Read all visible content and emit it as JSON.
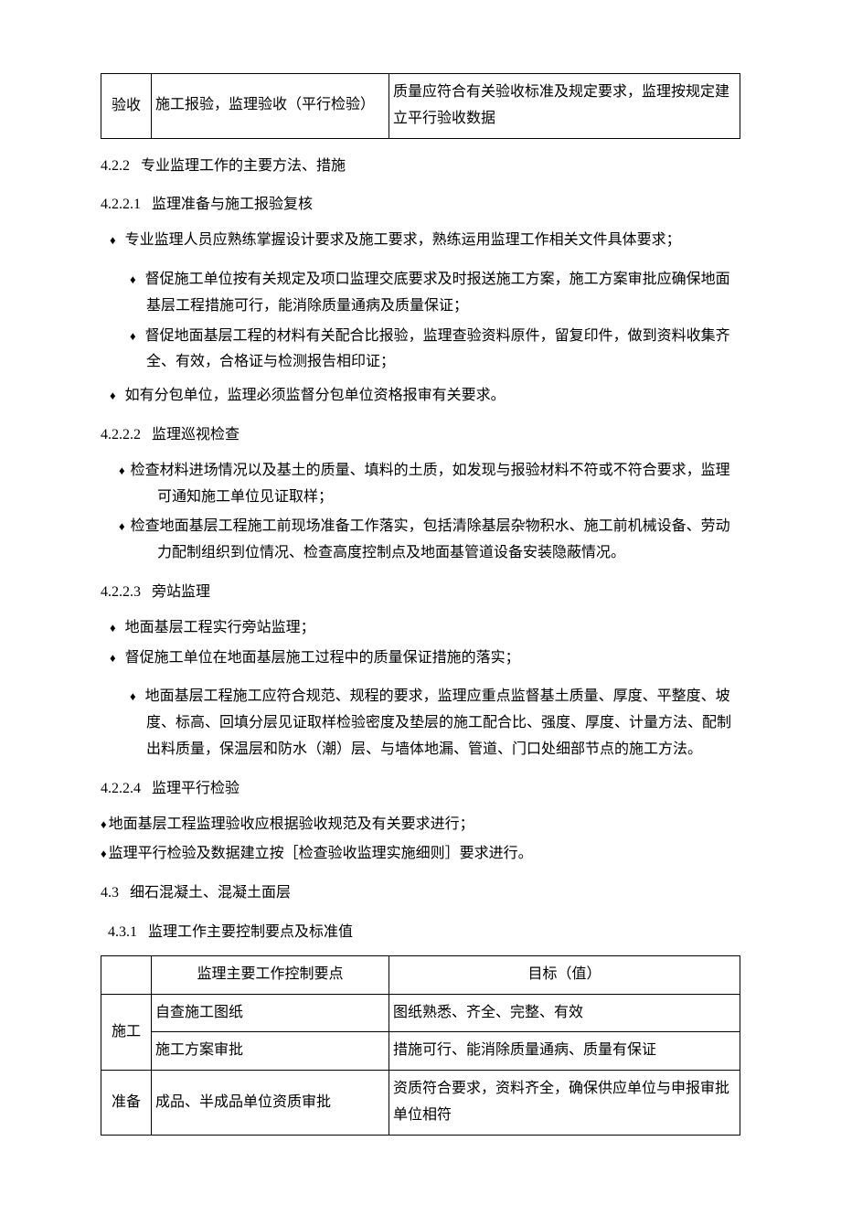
{
  "top_table": {
    "phase": "验收",
    "point": "施工报验，监理验收（平行检验）",
    "target": "质量应符合有关验收标准及规定要求，监理按规定建立平行验收数据"
  },
  "sec_4_2_2": {
    "num": "4.2.2",
    "title": "专业监理工作的主要方法、措施"
  },
  "sec_4_2_2_1": {
    "num": "4.2.2.1",
    "title": "监理准备与施工报验复核",
    "bullets": [
      "专业监理人员应熟练掌握设计要求及施工要求，熟练运用监理工作相关文件具体要求；"
    ],
    "sub": [
      "督促施工单位按有关规定及项口监理交底要求及时报送施工方案，施工方案审批应确保地面基层工程措施可行，能消除质量通病及质量保证；",
      "督促地面基层工程的材料有关配合比报验，监理查验资料原件，留复印件，做到资料收集齐全、有效，合格证与检测报告相印证；"
    ],
    "bullets2": [
      "如有分包单位，监理必须监督分包单位资格报审有关要求。"
    ]
  },
  "sec_4_2_2_2": {
    "num": "4.2.2.2",
    "title": "监理巡视检查",
    "items": [
      "检查材料进场情况以及基土的质量、填料的土质，如发现与报验材料不符或不符合要求，监理可通知施工单位见证取样；",
      "检查地面基层工程施工前现场准备工作落实，包括清除基层杂物积水、施工前机械设备、劳动力配制组织到位情况、检查高度控制点及地面基管道设备安装隐蔽情况。"
    ]
  },
  "sec_4_2_2_3": {
    "num": "4.2.2.3",
    "title": "旁站监理",
    "bullets": [
      "地面基层工程实行旁站监理；",
      "督促施工单位在地面基层施工过程中的质量保证措施的落实；"
    ],
    "sub": [
      "地面基层工程施工应符合规范、规程的要求，监理应重点监督基土质量、厚度、平整度、坡度、标高、回填分层见证取样检验密度及垫层的施工配合比、强度、厚度、计量方法、配制出料质量，保温层和防水（潮）层、与墙体地漏、管道、门口处细部节点的施工方法。"
    ]
  },
  "sec_4_2_2_4": {
    "num": "4.2.2.4",
    "title": "监理平行检验",
    "items": [
      "地面基层工程监理验收应根据验收规范及有关要求进行；",
      "监理平行检验及数据建立按［检查验收监理实施细则］要求进行。"
    ]
  },
  "sec_4_3": {
    "num": "4.3",
    "title": "细石混凝土、混凝土面层"
  },
  "sec_4_3_1": {
    "num": "4.3.1",
    "title": "监理工作主要控制要点及标准值",
    "table": {
      "headers": {
        "point": "监理主要工作控制要点",
        "target": "目标（值）"
      },
      "rows": [
        {
          "phase_label": "施工",
          "point": "自查施工图纸",
          "target": "图纸熟悉、齐全、完整、有效"
        },
        {
          "point": "施工方案审批",
          "target": "措施可行、能消除质量通病、质量有保证"
        },
        {
          "phase_label": "准备",
          "point": "成品、半成品单位资质审批",
          "target": "资质符合要求，资料齐全，确保供应单位与申报审批单位相符"
        }
      ]
    }
  }
}
